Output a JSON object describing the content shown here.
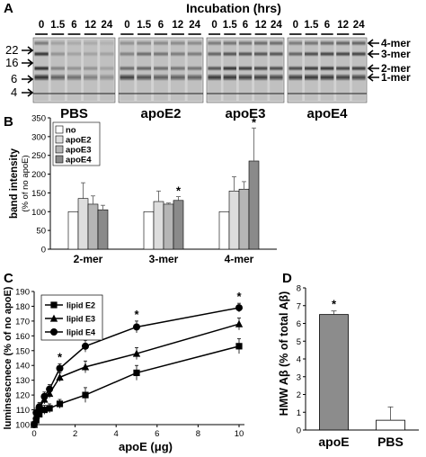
{
  "panel_labels": {
    "a": "A",
    "b": "B",
    "c": "C",
    "d": "D"
  },
  "panel_a": {
    "title": "Incubation (hrs)",
    "time_labels": [
      "0",
      "1.5",
      "6",
      "12",
      "24"
    ],
    "mw_labels": [
      "22",
      "16",
      "6",
      "4"
    ],
    "species_labels": [
      "4-mer",
      "3-mer",
      "2-mer",
      "1-mer"
    ],
    "groups": [
      "PBS",
      "apoE2",
      "apoE3",
      "apoE4"
    ]
  },
  "chart_data": [
    {
      "id": "B",
      "type": "bar",
      "ylabel": "band intensity\n(% of no apoE)",
      "ylim": [
        0,
        350
      ],
      "yticks": [
        0,
        50,
        100,
        150,
        200,
        250,
        300,
        350
      ],
      "categories": [
        "2-mer",
        "3-mer",
        "4-mer"
      ],
      "legend_position": "top-left",
      "series": [
        {
          "name": "no",
          "color": "#ffffff",
          "values": [
            100,
            100,
            100
          ],
          "errors": [
            0,
            0,
            0
          ]
        },
        {
          "name": "apoE2",
          "color": "#dddddd",
          "values": [
            135,
            127,
            155
          ],
          "errors": [
            42,
            28,
            38
          ]
        },
        {
          "name": "apoE3",
          "color": "#b5b5b5",
          "values": [
            120,
            120,
            160
          ],
          "errors": [
            22,
            3,
            20
          ]
        },
        {
          "name": "apoE4",
          "color": "#8a8a8a",
          "values": [
            105,
            130,
            235
          ],
          "errors": [
            12,
            10,
            88
          ]
        }
      ],
      "significance": [
        {
          "category": "3-mer",
          "series": "apoE4",
          "mark": "*"
        },
        {
          "category": "4-mer",
          "series": "apoE4",
          "mark": "*"
        }
      ]
    },
    {
      "id": "C",
      "type": "line",
      "xlabel": "apoE (μg)",
      "ylabel": "luminsescnece (% of no apoE)",
      "xlim": [
        0,
        10
      ],
      "xticks": [
        0,
        2,
        4,
        6,
        8,
        10
      ],
      "ylim": [
        100,
        190
      ],
      "yticks": [
        100,
        110,
        120,
        130,
        140,
        150,
        160,
        170,
        180,
        190
      ],
      "legend_position": "top-left",
      "x": [
        0,
        0.1,
        0.25,
        0.5,
        0.75,
        1.25,
        2.5,
        5,
        10
      ],
      "series": [
        {
          "name": "lipid E2",
          "marker": "square",
          "values": [
            100,
            103,
            107,
            110,
            111,
            114,
            120,
            135,
            153
          ],
          "errors": [
            2,
            2,
            3,
            3,
            3,
            3,
            5,
            5,
            5
          ]
        },
        {
          "name": "lipid E3",
          "marker": "triangle",
          "values": [
            100,
            106,
            111,
            117,
            121,
            132,
            139,
            148,
            168
          ],
          "errors": [
            2,
            3,
            3,
            3,
            3,
            3,
            4,
            4,
            4
          ]
        },
        {
          "name": "lipid E4",
          "marker": "circle",
          "values": [
            100,
            108,
            112,
            119,
            124,
            138,
            153,
            166,
            179
          ],
          "errors": [
            2,
            3,
            3,
            3,
            3,
            3,
            4,
            4,
            3
          ]
        }
      ],
      "significance_x": [
        1.25,
        2.5,
        5,
        10
      ],
      "significance_mark": "*"
    },
    {
      "id": "D",
      "type": "bar",
      "ylabel": "HMW Aβ (% of total Aβ)",
      "ylim": [
        0,
        8
      ],
      "yticks": [
        0,
        1,
        2,
        3,
        4,
        5,
        6,
        7,
        8
      ],
      "categories": [
        "apoE",
        "PBS"
      ],
      "colors": [
        "#8c8c8c",
        "#ffffff"
      ],
      "values": [
        6.5,
        0.55
      ],
      "errors": [
        0.2,
        0.75
      ],
      "significance": [
        {
          "category": "apoE",
          "mark": "*"
        }
      ]
    }
  ]
}
